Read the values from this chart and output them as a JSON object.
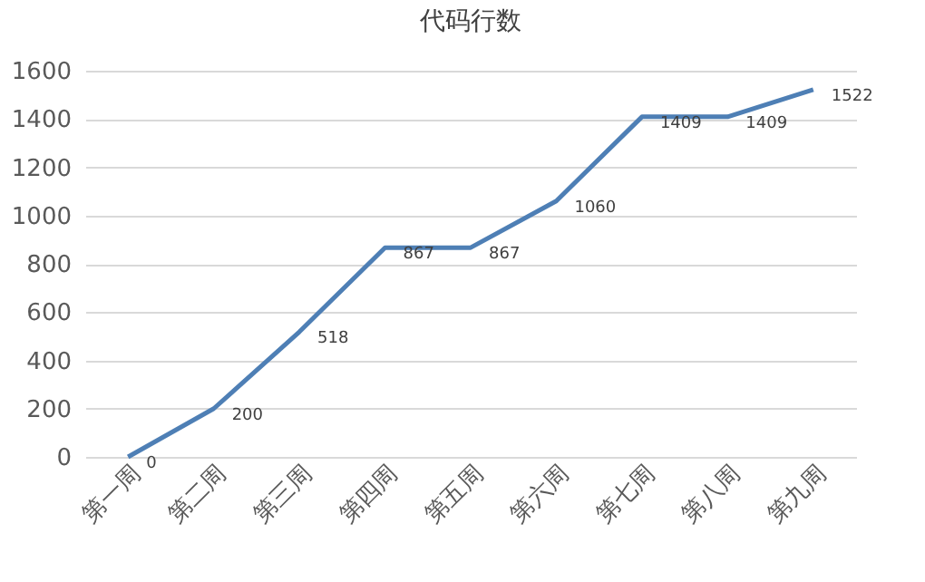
{
  "chart_data": {
    "type": "line",
    "title": "代码行数",
    "categories": [
      "第一周",
      "第二周",
      "第三周",
      "第四周",
      "第五周",
      "第六周",
      "第七周",
      "第八周",
      "第九周"
    ],
    "values": [
      0,
      200,
      518,
      867,
      867,
      1060,
      1409,
      1409,
      1522
    ],
    "color": "#4e7fb5",
    "ylim": [
      0,
      1600
    ],
    "yticks": [
      0,
      200,
      400,
      600,
      800,
      1000,
      1200,
      1400,
      1600
    ],
    "grid": "y",
    "data_labels": true,
    "marker": "none"
  }
}
